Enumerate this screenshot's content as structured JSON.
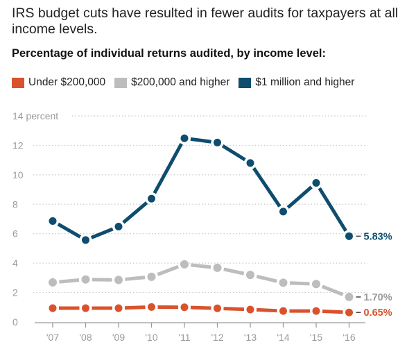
{
  "headline": "IRS budget cuts have resulted in fewer audits for taxpayers at all income levels.",
  "chart_data": {
    "type": "line",
    "title": "Percentage of individual returns audited, by income level:",
    "xlabel": "",
    "ylabel": "percent",
    "x": [
      "'07",
      "'08",
      "'09",
      "'10",
      "'11",
      "'12",
      "'13",
      "'14",
      "'15",
      "'16"
    ],
    "ylim": [
      0,
      14
    ],
    "yticks": [
      0,
      2,
      4,
      6,
      8,
      10,
      12,
      14
    ],
    "ytick_labels": [
      "0",
      "2",
      "4",
      "6",
      "8",
      "10",
      "12",
      "14 percent"
    ],
    "grid": true,
    "legend_position": "top-left",
    "series": [
      {
        "name": "Under $200,000",
        "color": "#d9522b",
        "values": [
          0.94,
          0.94,
          0.94,
          1.02,
          1.0,
          0.93,
          0.85,
          0.75,
          0.75,
          0.65
        ],
        "end_label": "0.65%"
      },
      {
        "name": "$200,000 and higher",
        "color": "#bdbdbd",
        "label_color": "#9a9a9a",
        "values": [
          2.69,
          2.89,
          2.86,
          3.07,
          3.92,
          3.68,
          3.2,
          2.67,
          2.58,
          1.7
        ],
        "end_label": "1.70%"
      },
      {
        "name": "$1 million and higher",
        "color": "#0e4d6e",
        "values": [
          6.86,
          5.57,
          6.48,
          8.38,
          12.48,
          12.19,
          10.8,
          7.5,
          9.45,
          5.83
        ],
        "end_label": "5.83%"
      }
    ]
  }
}
